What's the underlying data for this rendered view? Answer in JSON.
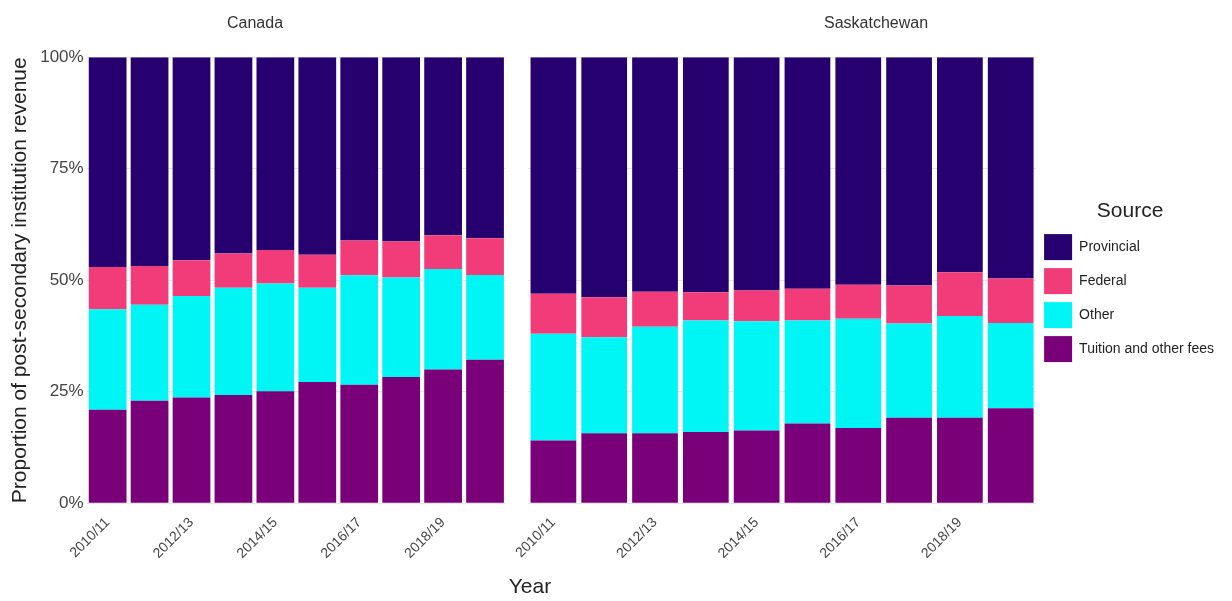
{
  "chart_data": [
    {
      "type": "bar",
      "title": "Canada",
      "xlabel": "Year",
      "ylabel": "Proportion of post-secondary institution revenue",
      "stacked": true,
      "grid": "y",
      "legend": false,
      "categories": [
        "2010/11",
        null,
        "2012/13",
        null,
        "2014/15",
        null,
        "2016/17",
        null,
        "2018/19",
        null
      ],
      "ylim": [
        0,
        100
      ],
      "yticks": [
        {
          "value": 0,
          "label": "0%"
        },
        {
          "value": 25,
          "label": "25%"
        },
        {
          "value": 50,
          "label": "50%"
        },
        {
          "value": 75,
          "label": "75%"
        },
        {
          "value": 100,
          "label": "100%"
        }
      ],
      "series": [
        {
          "color": "#7a0079",
          "values": [
            21,
            23,
            23.7,
            24.3,
            25.1,
            27.2,
            26.6,
            28.3,
            30,
            32.2
          ]
        },
        {
          "color": "#00f5f5",
          "values": [
            22.5,
            21.5,
            22.8,
            24,
            24.2,
            21.1,
            24.5,
            22.3,
            22.5,
            19
          ]
        },
        {
          "color": "#f23c7a",
          "values": [
            9.5,
            8.7,
            8,
            7.7,
            7.5,
            7.4,
            7.8,
            8.1,
            7.6,
            8.2
          ]
        },
        {
          "color": "#26006e",
          "values": [
            47,
            46.8,
            45.5,
            44,
            43.2,
            44.3,
            41.1,
            41.3,
            39.9,
            40.6
          ]
        }
      ]
    },
    {
      "type": "bar",
      "title": "Saskatchewan",
      "stacked": true,
      "grid": "y",
      "legend": "right",
      "legend_title": "Source",
      "tick_labels": "x",
      "categories": [
        "2010/11",
        null,
        "2012/13",
        null,
        "2014/15",
        null,
        "2016/17",
        null,
        "2018/19",
        null
      ],
      "ylim": [
        0,
        100
      ],
      "yticks": [
        0,
        25,
        50,
        75,
        100
      ],
      "series": [
        {
          "name": "Tuition and other fees",
          "color": "#7a0079",
          "values": [
            14.1,
            15.7,
            15.7,
            16,
            16.3,
            17.9,
            16.9,
            19.2,
            19.2,
            21.3
          ]
        },
        {
          "name": "Other",
          "color": "#00f5f5",
          "values": [
            23.9,
            21.5,
            23.9,
            25,
            24.5,
            23.1,
            24.5,
            21.1,
            22.8,
            19.1
          ]
        },
        {
          "name": "Federal",
          "color": "#f23c7a",
          "values": [
            9,
            9,
            7.8,
            6.3,
            6.9,
            7.1,
            7.6,
            8.5,
            9.8,
            10
          ]
        },
        {
          "name": "Provincial",
          "color": "#26006e",
          "values": [
            53,
            53.8,
            52.6,
            52.7,
            52.3,
            51.9,
            51,
            51.2,
            48.2,
            49.6
          ]
        }
      ]
    }
  ]
}
